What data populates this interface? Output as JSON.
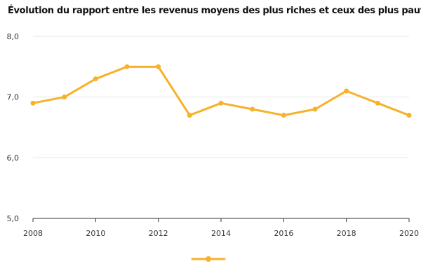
{
  "chart_data": {
    "type": "line",
    "title": "Évolution du rapport entre les revenus moyens des plus riches et ceux des plus pauvres",
    "xlabel": "",
    "ylabel": "",
    "x": [
      2008,
      2009,
      2010,
      2011,
      2012,
      2013,
      2014,
      2015,
      2016,
      2017,
      2018,
      2019,
      2020
    ],
    "series": [
      {
        "values": [
          6.9,
          7.0,
          7.3,
          7.5,
          7.5,
          6.7,
          6.9,
          6.8,
          6.7,
          6.8,
          7.1,
          6.9,
          6.7
        ]
      }
    ],
    "xlim": [
      2008,
      2020
    ],
    "ylim": [
      5.0,
      8.0
    ],
    "x_ticks": [
      2008,
      2010,
      2012,
      2014,
      2016,
      2018,
      2020
    ],
    "x_tick_labels": [
      "2008",
      "2010",
      "2012",
      "2014",
      "2016",
      "2018",
      "2020"
    ],
    "y_ticks": [
      5.0,
      6.0,
      7.0,
      8.0
    ],
    "y_tick_labels": [
      "5,0",
      "6,0",
      "7,0",
      "8,0"
    ],
    "grid": "horizontal",
    "legend": "bottom-center",
    "colors": {
      "series": "#F7B12A",
      "grid": "#E6E6E6",
      "axis": "#333333"
    }
  }
}
